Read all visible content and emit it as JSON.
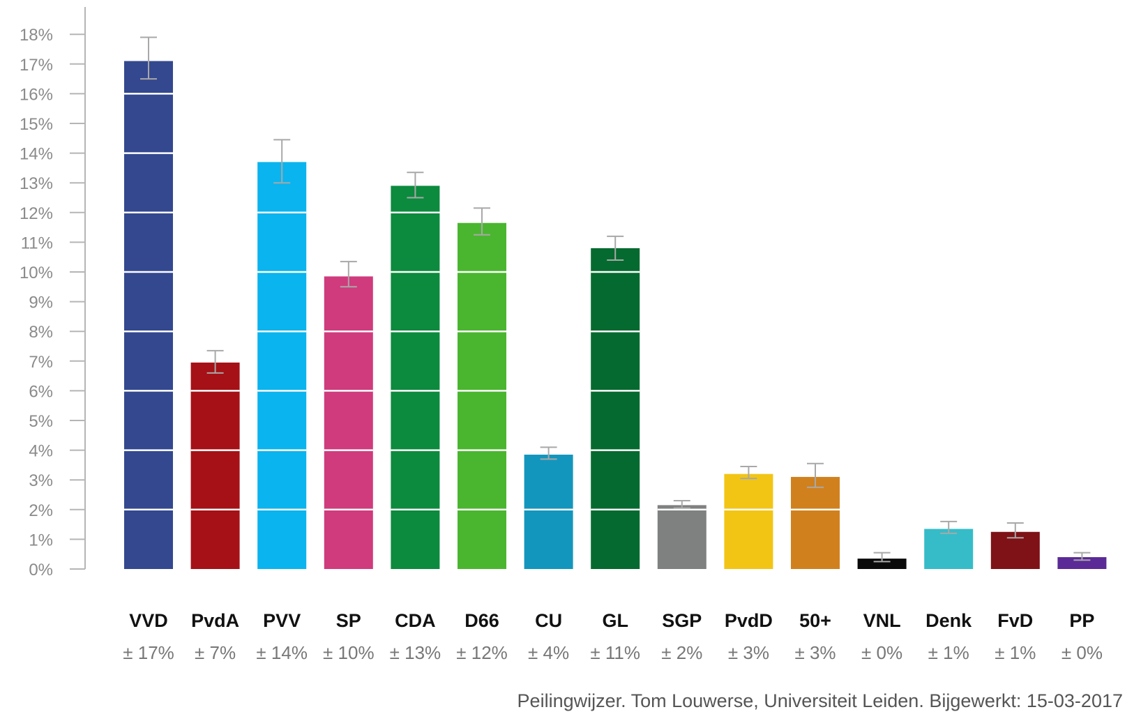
{
  "chart_data": {
    "type": "bar",
    "title": "",
    "xlabel": "",
    "ylabel": "",
    "ylim": [
      0,
      18
    ],
    "y_tick_values": [
      0,
      1,
      2,
      3,
      4,
      5,
      6,
      7,
      8,
      9,
      10,
      11,
      12,
      13,
      14,
      15,
      16,
      17,
      18
    ],
    "y_tick_labels": [
      "0%",
      "1%",
      "2%",
      "3%",
      "4%",
      "5%",
      "6%",
      "7%",
      "8%",
      "9%",
      "10%",
      "11%",
      "12%",
      "13%",
      "14%",
      "15%",
      "16%",
      "17%",
      "18%"
    ],
    "grid": false,
    "bar_gridline_step": 2,
    "categories": [
      "VVD",
      "PvdA",
      "PVV",
      "SP",
      "CDA",
      "D66",
      "CU",
      "GL",
      "SGP",
      "PvdD",
      "50+",
      "VNL",
      "Denk",
      "FvD",
      "PP"
    ],
    "values": [
      17.1,
      6.95,
      13.7,
      9.85,
      12.9,
      11.65,
      3.85,
      10.8,
      2.15,
      3.2,
      3.1,
      0.35,
      1.35,
      1.25,
      0.4
    ],
    "error_low": [
      16.5,
      6.6,
      13.0,
      9.5,
      12.5,
      11.25,
      3.7,
      10.4,
      2.05,
      3.05,
      2.75,
      0.25,
      1.2,
      1.05,
      0.3
    ],
    "error_high": [
      17.9,
      7.35,
      14.45,
      10.35,
      13.35,
      12.15,
      4.1,
      11.2,
      2.3,
      3.45,
      3.55,
      0.55,
      1.6,
      1.55,
      0.55
    ],
    "value_labels": [
      "± 17%",
      "± 7%",
      "± 14%",
      "± 10%",
      "± 13%",
      "± 12%",
      "± 4%",
      "± 11%",
      "± 2%",
      "± 3%",
      "± 3%",
      "± 0%",
      "± 1%",
      "± 1%",
      "± 0%"
    ],
    "colors": [
      "#33488f",
      "#a51116",
      "#0ab4ee",
      "#cf3b7d",
      "#0c8a3e",
      "#4ab62f",
      "#1396bd",
      "#056a2f",
      "#7f8080",
      "#f2c515",
      "#d0811d",
      "#0a0a0a",
      "#35bcc8",
      "#7e1217",
      "#5b2a96"
    ]
  },
  "source": "Peilingwijzer. Tom Louwerse, Universiteit Leiden. Bijgewerkt: 15-03-2017"
}
